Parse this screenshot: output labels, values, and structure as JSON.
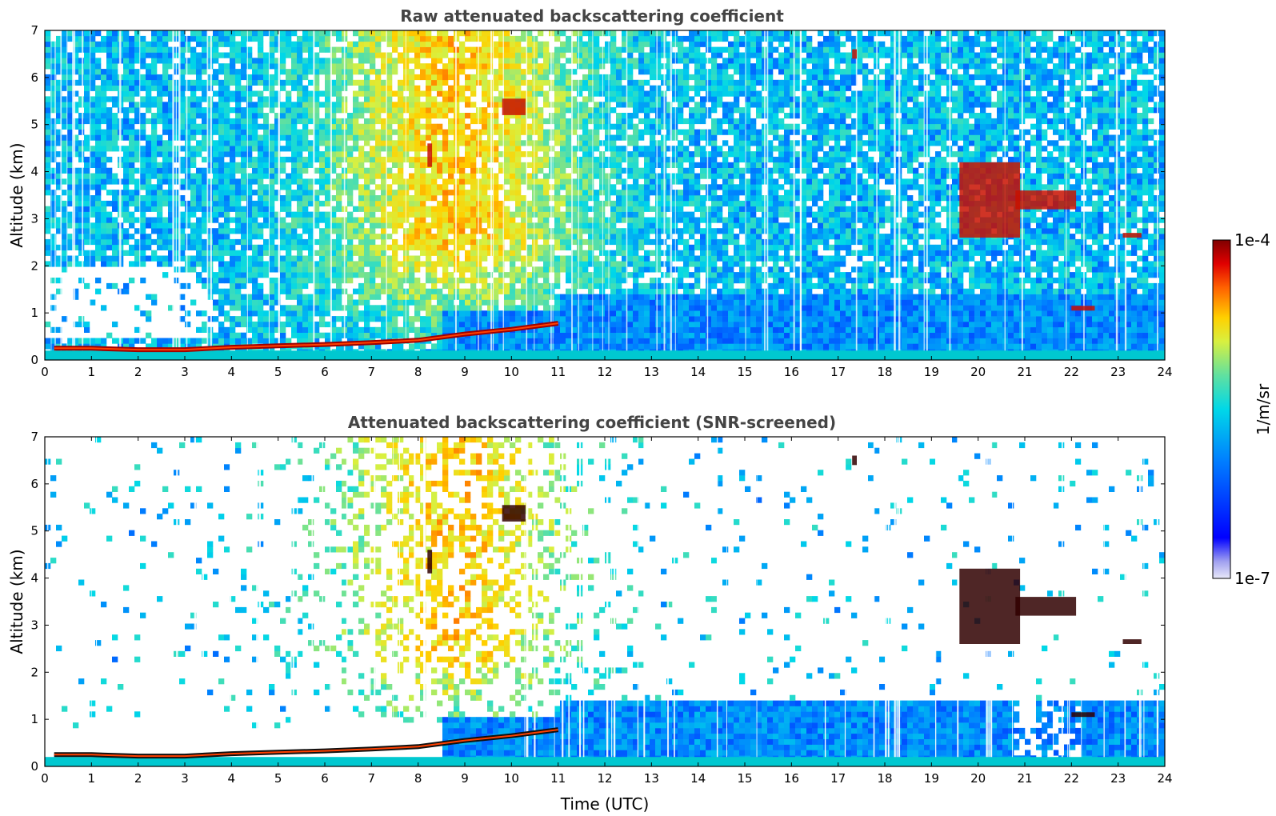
{
  "figure": {
    "colorbar": {
      "label": "1/m/sr",
      "max_label": "1e-4",
      "min_label": "1e-7",
      "scale": "log",
      "range": [
        1e-07,
        0.0001
      ],
      "colormap": [
        "#e8e8f8",
        "#0000ff",
        "#0080ff",
        "#00d8e8",
        "#60e0a0",
        "#d8f040",
        "#ffd000",
        "#ff6000",
        "#e00000",
        "#800000"
      ]
    },
    "xlabel": "Time (UTC)"
  },
  "chart_data": [
    {
      "type": "heatmap",
      "title": "Raw attenuated backscattering coefficient",
      "xlabel": "",
      "ylabel": "Altitude (km)",
      "xlim": [
        0,
        24
      ],
      "ylim": [
        0,
        7
      ],
      "xticks": [
        "0",
        "1",
        "2",
        "3",
        "4",
        "5",
        "6",
        "7",
        "8",
        "9",
        "10",
        "11",
        "12",
        "13",
        "14",
        "15",
        "16",
        "17",
        "18",
        "19",
        "20",
        "21",
        "22",
        "23",
        "24"
      ],
      "yticks": [
        "0",
        "1",
        "2",
        "3",
        "4",
        "5",
        "6",
        "7"
      ],
      "boundary_layer_top_km": [
        [
          0.2,
          0.25
        ],
        [
          1,
          0.25
        ],
        [
          2,
          0.22
        ],
        [
          3,
          0.22
        ],
        [
          4,
          0.27
        ],
        [
          5,
          0.3
        ],
        [
          6,
          0.33
        ],
        [
          7,
          0.37
        ],
        [
          8,
          0.42
        ],
        [
          9,
          0.55
        ],
        [
          10,
          0.65
        ],
        [
          11,
          0.78
        ]
      ],
      "clouds": [
        {
          "t0": 19.6,
          "t1": 20.9,
          "alt_top_km": 4.2,
          "alt_bottom_km": 2.6
        },
        {
          "t0": 20.8,
          "t1": 22.1,
          "alt_top_km": 3.6,
          "alt_bottom_km": 3.2
        },
        {
          "t0": 9.8,
          "t1": 10.3,
          "alt_top_km": 5.55,
          "alt_bottom_km": 5.2
        },
        {
          "t0": 8.2,
          "t1": 8.3,
          "alt_top_km": 4.6,
          "alt_bottom_km": 4.1
        },
        {
          "t0": 17.3,
          "t1": 17.4,
          "alt_top_km": 6.6,
          "alt_bottom_km": 6.4
        },
        {
          "t0": 22.0,
          "t1": 22.5,
          "alt_top_km": 1.15,
          "alt_bottom_km": 1.05
        },
        {
          "t0": 23.1,
          "t1": 23.5,
          "alt_top_km": 2.7,
          "alt_bottom_km": 2.6
        }
      ],
      "noise": "high"
    },
    {
      "type": "heatmap",
      "title": "Attenuated backscattering coefficient (SNR-screened)",
      "xlabel": "Time (UTC)",
      "ylabel": "Altitude (km)",
      "xlim": [
        0,
        24
      ],
      "ylim": [
        0,
        7
      ],
      "xticks": [
        "0",
        "1",
        "2",
        "3",
        "4",
        "5",
        "6",
        "7",
        "8",
        "9",
        "10",
        "11",
        "12",
        "13",
        "14",
        "15",
        "16",
        "17",
        "18",
        "19",
        "20",
        "21",
        "22",
        "23",
        "24"
      ],
      "yticks": [
        "0",
        "1",
        "2",
        "3",
        "4",
        "5",
        "6",
        "7"
      ],
      "boundary_layer_top_km": [
        [
          0.2,
          0.25
        ],
        [
          1,
          0.25
        ],
        [
          2,
          0.22
        ],
        [
          3,
          0.22
        ],
        [
          4,
          0.27
        ],
        [
          5,
          0.3
        ],
        [
          6,
          0.33
        ],
        [
          7,
          0.37
        ],
        [
          8,
          0.42
        ],
        [
          9,
          0.55
        ],
        [
          10,
          0.65
        ],
        [
          11,
          0.78
        ]
      ],
      "clouds": [
        {
          "t0": 19.6,
          "t1": 20.9,
          "alt_top_km": 4.2,
          "alt_bottom_km": 2.6
        },
        {
          "t0": 20.8,
          "t1": 22.1,
          "alt_top_km": 3.6,
          "alt_bottom_km": 3.2
        },
        {
          "t0": 9.8,
          "t1": 10.3,
          "alt_top_km": 5.55,
          "alt_bottom_km": 5.2
        },
        {
          "t0": 8.2,
          "t1": 8.3,
          "alt_top_km": 4.6,
          "alt_bottom_km": 4.1
        },
        {
          "t0": 17.3,
          "t1": 17.4,
          "alt_top_km": 6.6,
          "alt_bottom_km": 6.4
        },
        {
          "t0": 22.0,
          "t1": 22.5,
          "alt_top_km": 1.15,
          "alt_bottom_km": 1.05
        },
        {
          "t0": 23.1,
          "t1": 23.5,
          "alt_top_km": 2.7,
          "alt_bottom_km": 2.6
        }
      ],
      "noise": "screened"
    }
  ]
}
